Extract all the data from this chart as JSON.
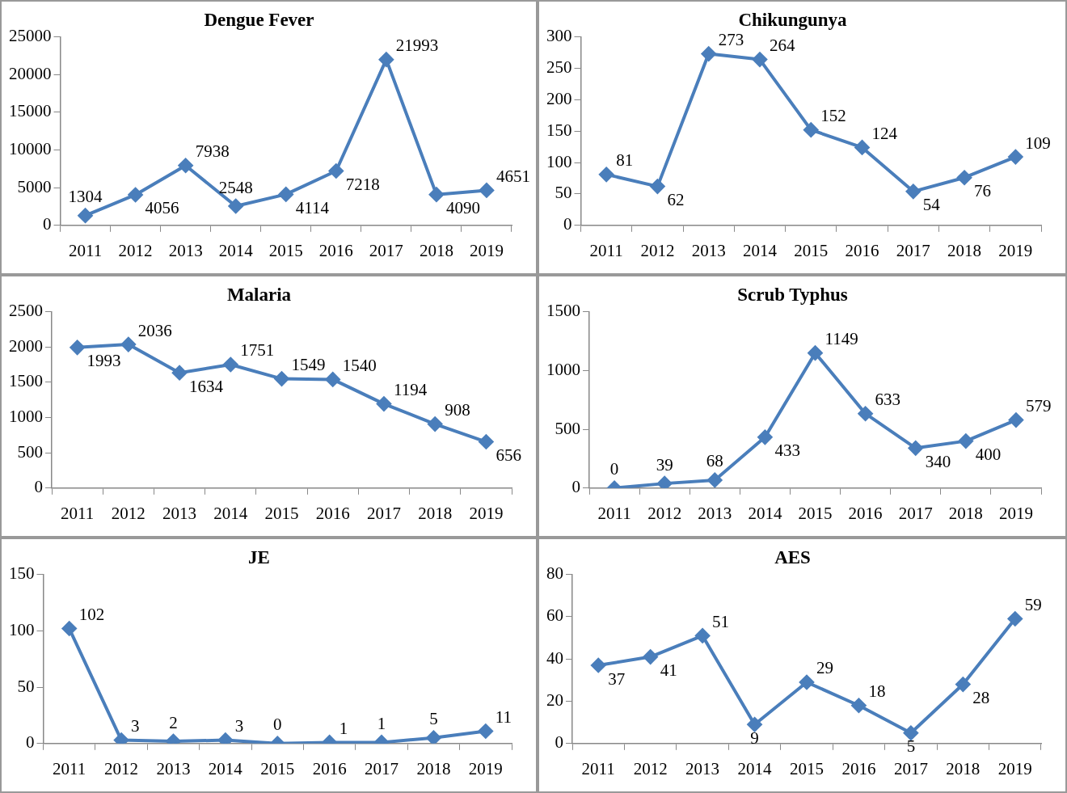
{
  "chart_data": [
    {
      "type": "line",
      "title": "Dengue Fever",
      "categories": [
        "2011",
        "2012",
        "2013",
        "2014",
        "2015",
        "2016",
        "2017",
        "2018",
        "2019"
      ],
      "values": [
        1304,
        4056,
        7938,
        2548,
        4114,
        7218,
        21993,
        4090,
        4651
      ],
      "color": "#4a7ebb",
      "ylim": [
        0,
        25000
      ],
      "yticks": [
        0,
        5000,
        10000,
        15000,
        20000,
        25000
      ],
      "grid": false,
      "legend": false,
      "marker": "diamond",
      "line_style": "solid",
      "data_labels": true
    },
    {
      "type": "line",
      "title": "Chikungunya",
      "categories": [
        "2011",
        "2012",
        "2013",
        "2014",
        "2015",
        "2016",
        "2017",
        "2018",
        "2019"
      ],
      "values": [
        81,
        62,
        273,
        264,
        152,
        124,
        54,
        76,
        109
      ],
      "color": "#4a7ebb",
      "ylim": [
        0,
        300
      ],
      "yticks": [
        0,
        50,
        100,
        150,
        200,
        250,
        300
      ],
      "grid": false,
      "legend": false,
      "marker": "diamond",
      "line_style": "solid",
      "data_labels": true
    },
    {
      "type": "line",
      "title": "Malaria",
      "categories": [
        "2011",
        "2012",
        "2013",
        "2014",
        "2015",
        "2016",
        "2017",
        "2018",
        "2019"
      ],
      "values": [
        1993,
        2036,
        1634,
        1751,
        1549,
        1540,
        1194,
        908,
        656
      ],
      "color": "#4a7ebb",
      "ylim": [
        0,
        2500
      ],
      "yticks": [
        0,
        500,
        1000,
        1500,
        2000,
        2500
      ],
      "grid": false,
      "legend": false,
      "marker": "diamond",
      "line_style": "solid",
      "data_labels": true
    },
    {
      "type": "line",
      "title": "Scrub Typhus",
      "categories": [
        "2011",
        "2012",
        "2013",
        "2014",
        "2015",
        "2016",
        "2017",
        "2018",
        "2019"
      ],
      "values": [
        0,
        39,
        68,
        433,
        1149,
        633,
        340,
        400,
        579
      ],
      "color": "#4a7ebb",
      "ylim": [
        0,
        1500
      ],
      "yticks": [
        0,
        500,
        1000,
        1500
      ],
      "grid": false,
      "legend": false,
      "marker": "diamond",
      "line_style": "solid",
      "data_labels": true
    },
    {
      "type": "line",
      "title": "JE",
      "categories": [
        "2011",
        "2012",
        "2013",
        "2014",
        "2015",
        "2016",
        "2017",
        "2018",
        "2019"
      ],
      "values": [
        102,
        3,
        2,
        3,
        0,
        1,
        1,
        5,
        11
      ],
      "color": "#4a7ebb",
      "ylim": [
        0,
        150
      ],
      "yticks": [
        0,
        50,
        100,
        150
      ],
      "grid": false,
      "legend": false,
      "marker": "diamond",
      "line_style": "solid",
      "data_labels": true
    },
    {
      "type": "line",
      "title": "AES",
      "categories": [
        "2011",
        "2012",
        "2013",
        "2014",
        "2015",
        "2016",
        "2017",
        "2018",
        "2019"
      ],
      "values": [
        37,
        41,
        51,
        9,
        29,
        18,
        5,
        28,
        59
      ],
      "color": "#4a7ebb",
      "ylim": [
        0,
        80
      ],
      "yticks": [
        0,
        20,
        40,
        60,
        80
      ],
      "grid": false,
      "legend": false,
      "marker": "diamond",
      "line_style": "solid",
      "data_labels": true
    }
  ]
}
